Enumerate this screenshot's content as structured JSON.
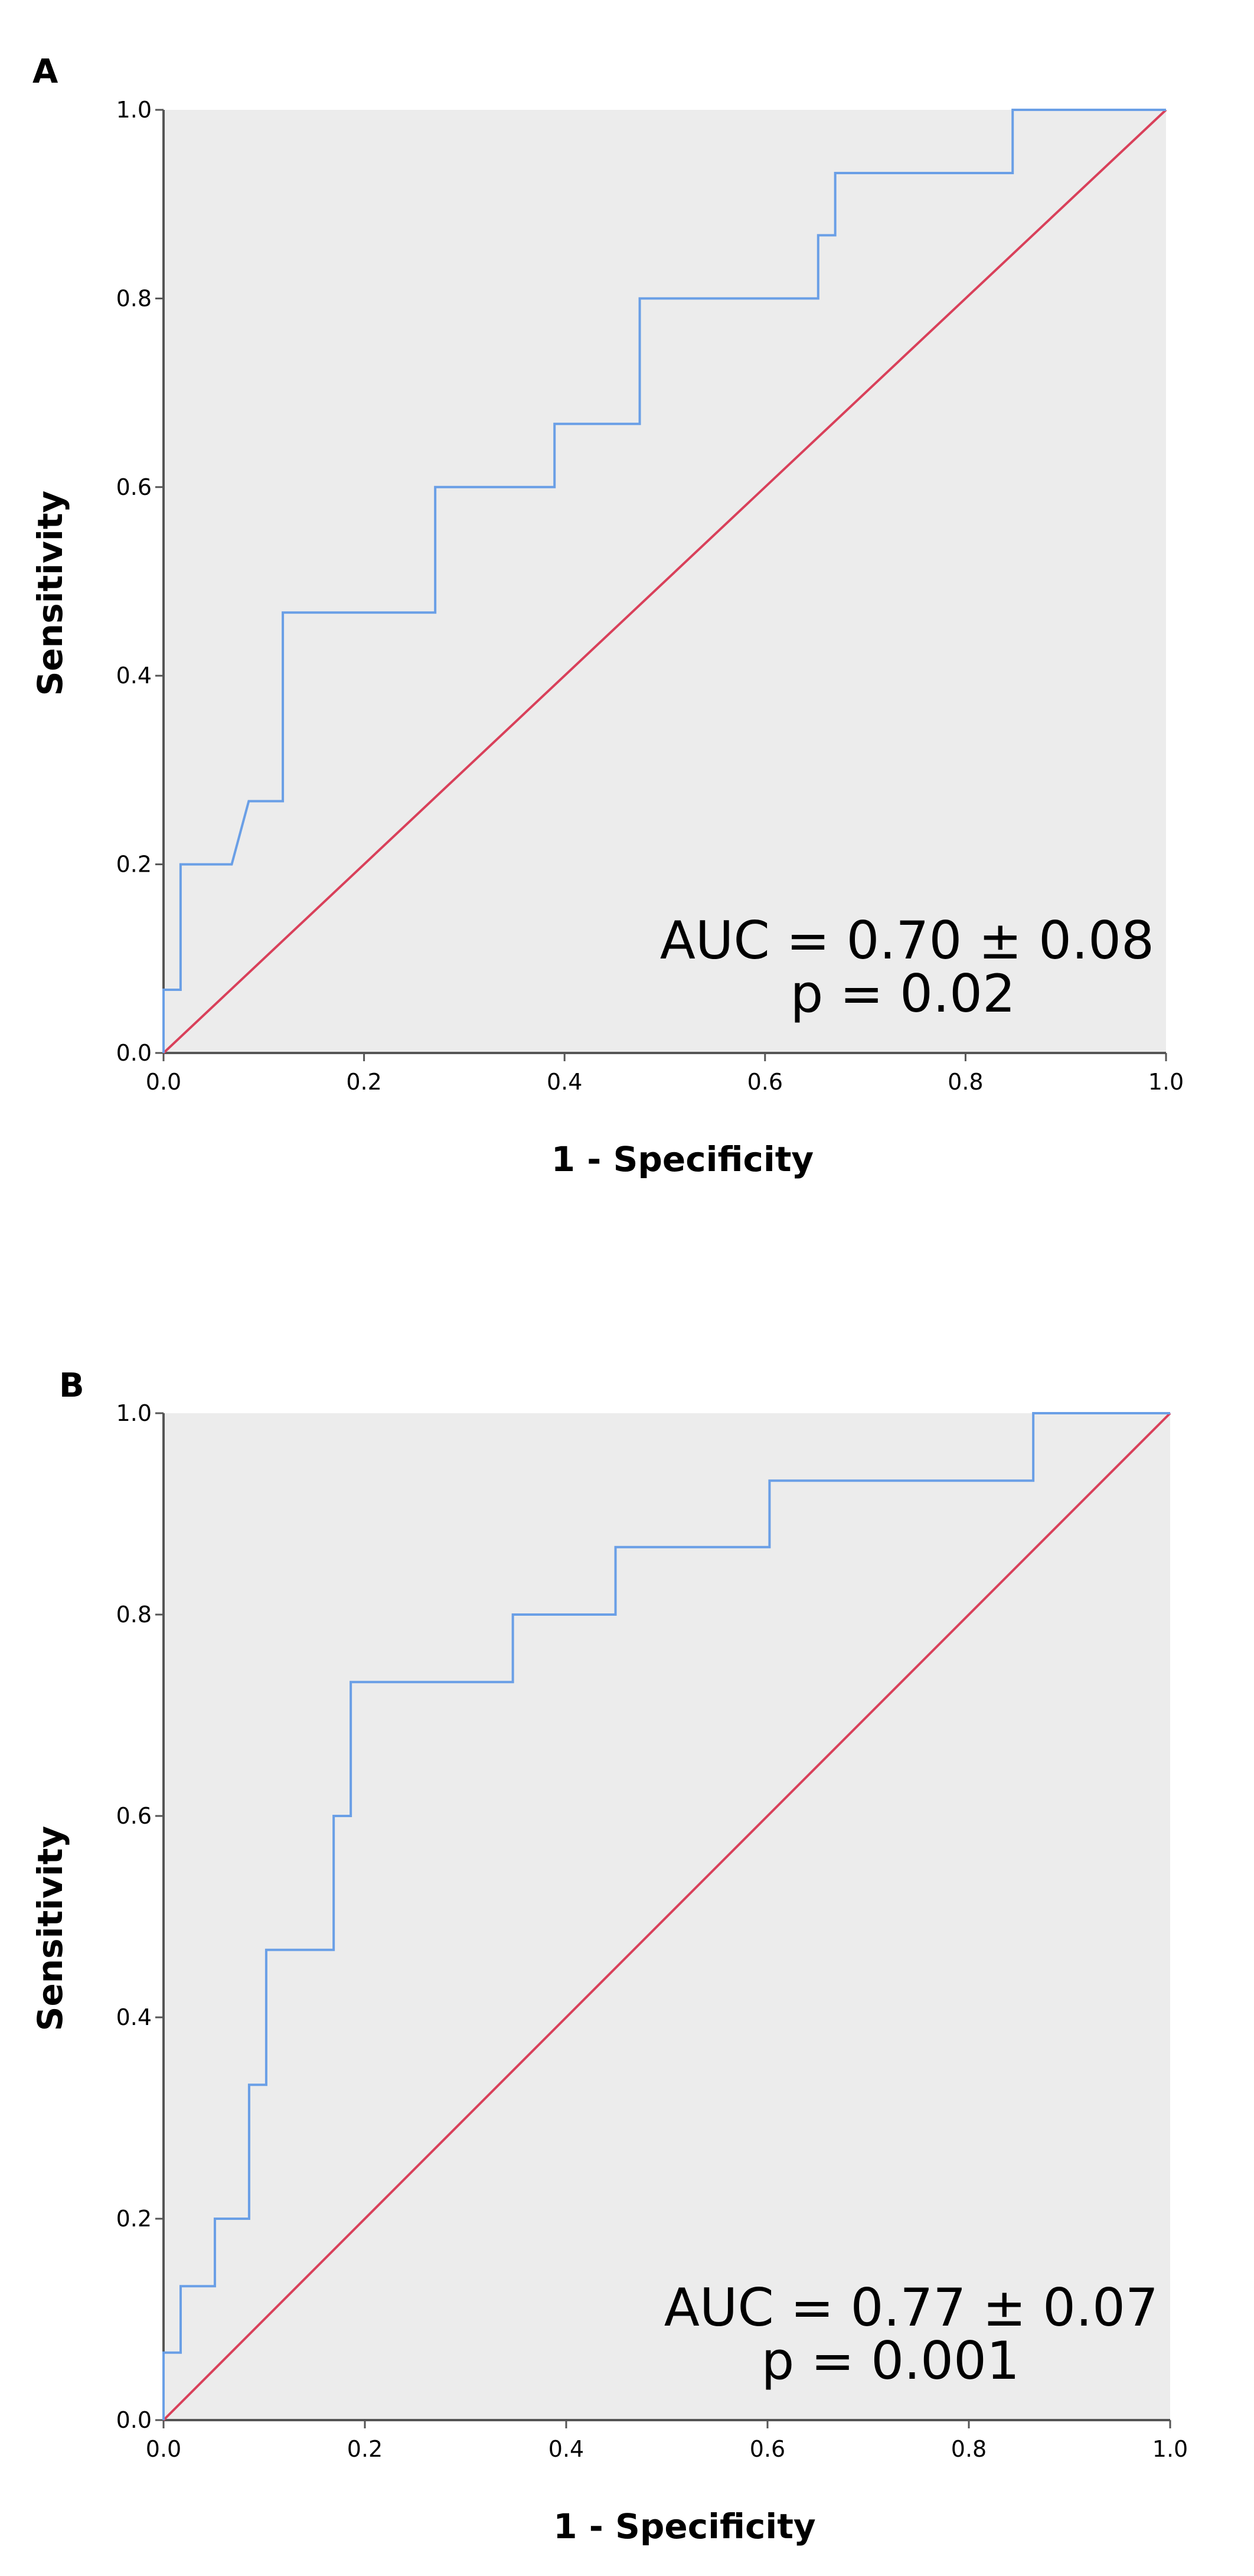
{
  "chart_data": [
    {
      "type": "line",
      "panel_label": "A",
      "xlabel": "1 - Specificity",
      "ylabel": "Sensitivity",
      "xlim": [
        0,
        1
      ],
      "ylim": [
        0,
        1
      ],
      "x_ticks": [
        "0.0",
        "0.2",
        "0.4",
        "0.6",
        "0.8",
        "1.0"
      ],
      "y_ticks": [
        "0.0",
        "0.2",
        "0.4",
        "0.6",
        "0.8",
        "1.0"
      ],
      "colors": {
        "roc": "#6a9fe6",
        "reference": "#d9405a",
        "plot_bg": "#ececec"
      },
      "series": [
        {
          "name": "ROC curve",
          "x": [
            0,
            0,
            0.017,
            0.017,
            0.068,
            0.085,
            0.085,
            0.119,
            0.119,
            0.271,
            0.271,
            0.39,
            0.39,
            0.475,
            0.475,
            0.653,
            0.653,
            0.67,
            0.67,
            0.847,
            0.847,
            1.0
          ],
          "y": [
            0,
            0.067,
            0.067,
            0.2,
            0.2,
            0.267,
            0.267,
            0.267,
            0.467,
            0.467,
            0.6,
            0.6,
            0.667,
            0.667,
            0.8,
            0.8,
            0.867,
            0.867,
            0.933,
            0.933,
            1.0,
            1.0
          ]
        },
        {
          "name": "Reference line",
          "x": [
            0,
            1
          ],
          "y": [
            0,
            1
          ]
        }
      ],
      "annotation": {
        "line1": "AUC = 0.70 ± 0.08",
        "line2": "p = 0.02"
      }
    },
    {
      "type": "line",
      "panel_label": "B",
      "xlabel": "1 - Specificity",
      "ylabel": "Sensitivity",
      "xlim": [
        0,
        1
      ],
      "ylim": [
        0,
        1
      ],
      "x_ticks": [
        "0.0",
        "0.2",
        "0.4",
        "0.6",
        "0.8",
        "1.0"
      ],
      "y_ticks": [
        "0.0",
        "0.2",
        "0.4",
        "0.6",
        "0.8",
        "1.0"
      ],
      "colors": {
        "roc": "#6a9fe6",
        "reference": "#d9405a",
        "plot_bg": "#ececec"
      },
      "series": [
        {
          "name": "ROC curve",
          "x": [
            0,
            0,
            0.017,
            0.017,
            0.051,
            0.051,
            0.085,
            0.085,
            0.102,
            0.102,
            0.169,
            0.169,
            0.186,
            0.186,
            0.347,
            0.347,
            0.449,
            0.449,
            0.602,
            0.602,
            0.864,
            0.864,
            1.0
          ],
          "y": [
            0,
            0.067,
            0.067,
            0.133,
            0.133,
            0.2,
            0.2,
            0.333,
            0.333,
            0.467,
            0.467,
            0.6,
            0.6,
            0.733,
            0.733,
            0.8,
            0.8,
            0.867,
            0.867,
            0.933,
            0.933,
            1.0,
            1.0
          ]
        },
        {
          "name": "Reference line",
          "x": [
            0,
            1
          ],
          "y": [
            0,
            1
          ]
        }
      ],
      "annotation": {
        "line1": "AUC = 0.77 ± 0.07",
        "line2": "p = 0.001"
      }
    }
  ]
}
